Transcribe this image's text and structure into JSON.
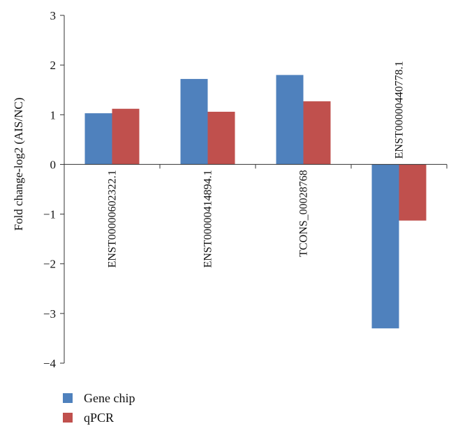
{
  "chart_data": {
    "type": "bar",
    "categories": [
      "ENST00000602322.1",
      "ENST00000414894.1",
      "TCONS_00028768",
      "ENST00000440778.1"
    ],
    "series": [
      {
        "name": "Gene chip",
        "color": "#4f81bd",
        "values": [
          1.03,
          1.72,
          1.8,
          -3.3
        ]
      },
      {
        "name": "qPCR",
        "color": "#c0504d",
        "values": [
          1.12,
          1.06,
          1.27,
          -1.13
        ]
      }
    ],
    "ylabel": "Fold change-log2 (AIS/NC)",
    "ylim": [
      -4,
      3
    ],
    "yticks": [
      3,
      2,
      1,
      0,
      -1,
      -2,
      -3,
      -4
    ],
    "ytick_labels": [
      "3",
      "2",
      "1",
      "0",
      "−1",
      "−2",
      "−3",
      "−4"
    ],
    "grid": false,
    "legend_position": "bottom-left"
  }
}
